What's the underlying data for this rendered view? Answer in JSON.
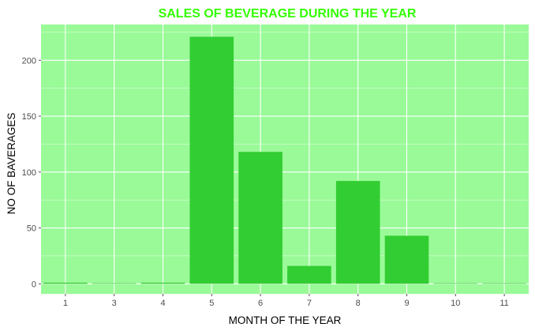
{
  "chart_data": {
    "type": "bar",
    "title": "SALES OF BEVERAGE DURING THE YEAR",
    "xlabel": "MONTH OF THE YEAR",
    "ylabel": "NO OF BAVERAGES",
    "categories": [
      "1",
      "3",
      "4",
      "5",
      "6",
      "7",
      "8",
      "9",
      "10",
      "11"
    ],
    "values": [
      1,
      0.5,
      1,
      221,
      118,
      16,
      92,
      43,
      0.5,
      0.5
    ],
    "ylim": [
      -9,
      232
    ],
    "yticks": [
      0,
      50,
      100,
      150,
      200
    ],
    "grid": true,
    "legend": "none"
  },
  "colors": {
    "title": "#33ff00",
    "bar": "#32cd32",
    "panel": "#9afa98",
    "grid_major": "#ffffff",
    "tick": "#4d4d4d"
  }
}
